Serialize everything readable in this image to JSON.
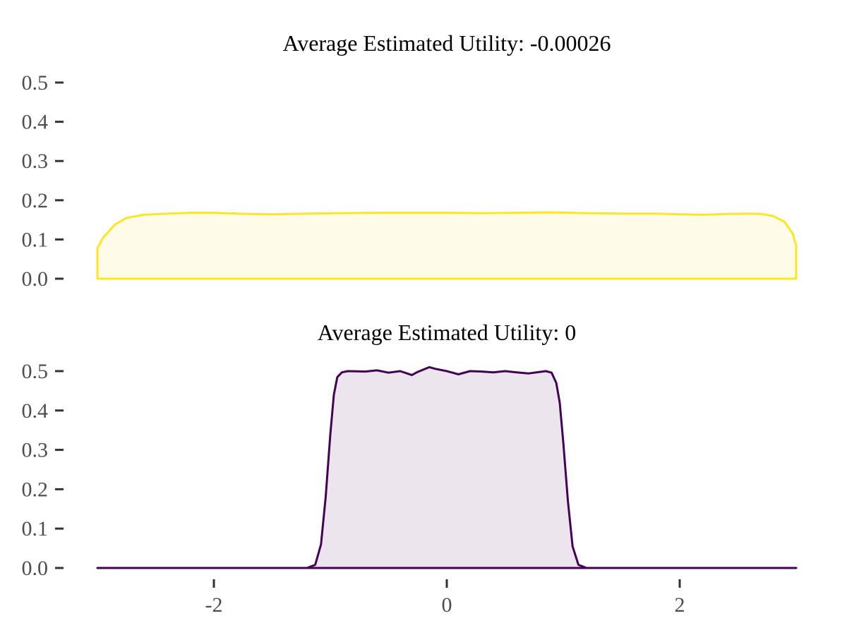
{
  "chart_data": [
    {
      "type": "area",
      "title": "Average Estimated Utility: -0.00026",
      "xlabel": "",
      "ylabel": "",
      "xlim": [
        -3,
        3
      ],
      "ylim": [
        0,
        0.5
      ],
      "y_ticks": [
        0.0,
        0.1,
        0.2,
        0.3,
        0.4,
        0.5
      ],
      "y_tick_labels": [
        "0.0",
        "0.1",
        "0.2",
        "0.3",
        "0.4",
        "0.5"
      ],
      "show_x_ticks": false,
      "grid": false,
      "legend": "none",
      "colors": {
        "line": "#FDE725",
        "fill": "#FEFBE9"
      },
      "x": [
        -3.0,
        -2.95,
        -2.85,
        -2.75,
        -2.6,
        -2.4,
        -2.2,
        -2.0,
        -1.8,
        -1.5,
        -1.2,
        -0.9,
        -0.6,
        -0.3,
        0.0,
        0.3,
        0.6,
        0.9,
        1.2,
        1.5,
        1.8,
        2.0,
        2.2,
        2.4,
        2.6,
        2.7,
        2.8,
        2.9,
        2.97,
        3.0
      ],
      "y": [
        0.078,
        0.105,
        0.138,
        0.155,
        0.163,
        0.166,
        0.168,
        0.168,
        0.166,
        0.164,
        0.166,
        0.167,
        0.168,
        0.168,
        0.168,
        0.167,
        0.168,
        0.169,
        0.167,
        0.166,
        0.166,
        0.164,
        0.163,
        0.165,
        0.166,
        0.165,
        0.16,
        0.145,
        0.115,
        0.085
      ]
    },
    {
      "type": "area",
      "title": "Average Estimated Utility: 0",
      "xlabel": "",
      "ylabel": "",
      "xlim": [
        -3,
        3
      ],
      "ylim": [
        0,
        0.5
      ],
      "x_ticks": [
        -2,
        0,
        2
      ],
      "x_tick_labels": [
        "-2",
        "0",
        "2"
      ],
      "y_ticks": [
        0.0,
        0.1,
        0.2,
        0.3,
        0.4,
        0.5
      ],
      "y_tick_labels": [
        "0.0",
        "0.1",
        "0.2",
        "0.3",
        "0.4",
        "0.5"
      ],
      "grid": false,
      "legend": "none",
      "colors": {
        "line": "#440154",
        "fill": "#ECE5EE"
      },
      "x": [
        -3.0,
        -1.4,
        -1.2,
        -1.13,
        -1.08,
        -1.04,
        -1.0,
        -0.97,
        -0.94,
        -0.9,
        -0.85,
        -0.7,
        -0.6,
        -0.5,
        -0.4,
        -0.3,
        -0.25,
        -0.15,
        -0.1,
        0.0,
        0.1,
        0.2,
        0.3,
        0.4,
        0.5,
        0.6,
        0.7,
        0.8,
        0.85,
        0.9,
        0.94,
        0.97,
        1.0,
        1.04,
        1.08,
        1.13,
        1.2,
        1.4,
        3.0
      ],
      "y": [
        0.0,
        0.0,
        0.0,
        0.008,
        0.06,
        0.18,
        0.34,
        0.44,
        0.485,
        0.497,
        0.5,
        0.499,
        0.502,
        0.496,
        0.5,
        0.49,
        0.498,
        0.51,
        0.506,
        0.5,
        0.492,
        0.5,
        0.499,
        0.497,
        0.5,
        0.497,
        0.494,
        0.498,
        0.5,
        0.496,
        0.47,
        0.42,
        0.32,
        0.17,
        0.055,
        0.008,
        0.0,
        0.0,
        0.0
      ]
    }
  ]
}
